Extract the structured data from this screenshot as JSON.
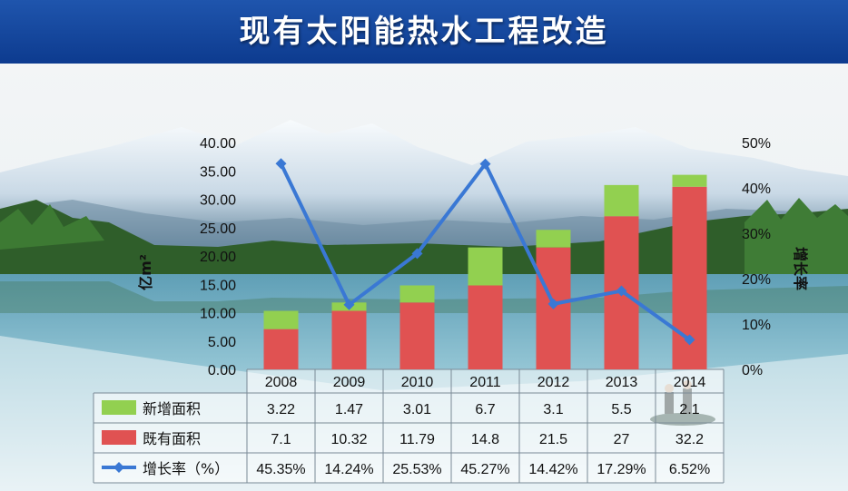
{
  "header": {
    "title": "现有太阳能热水工程改造"
  },
  "colors": {
    "banner": "#1a4ea5",
    "new_area": "#92d050",
    "existing_area": "#e05252",
    "growth_rate": "#3a78d4"
  },
  "chart_data": {
    "type": "bar",
    "stacked": true,
    "categories": [
      "2008",
      "2009",
      "2010",
      "2011",
      "2012",
      "2013",
      "2014"
    ],
    "series": [
      {
        "name": "既有面积",
        "type": "bar",
        "values": [
          7.1,
          10.32,
          11.79,
          14.8,
          21.5,
          27,
          32.2
        ]
      },
      {
        "name": "新增面积",
        "type": "bar",
        "values": [
          3.22,
          1.47,
          3.01,
          6.7,
          3.1,
          5.5,
          2.1
        ]
      },
      {
        "name": "增长率（%）",
        "type": "line",
        "axis": "right",
        "values": [
          45.35,
          14.24,
          25.53,
          45.27,
          14.42,
          17.29,
          6.52
        ],
        "labels": [
          "45.35%",
          "14.24%",
          "25.53%",
          "45.27%",
          "14.42%",
          "17.29%",
          "6.52%"
        ]
      }
    ],
    "table_rows": [
      {
        "name": "新增面积",
        "cells": [
          "3.22",
          "1.47",
          "3.01",
          "6.7",
          "3.1",
          "5.5",
          "2.1"
        ]
      },
      {
        "name": "既有面积",
        "cells": [
          "7.1",
          "10.32",
          "11.79",
          "14.8",
          "21.5",
          "27",
          "32.2"
        ]
      },
      {
        "name": "增长率（%）",
        "cells": [
          "45.35%",
          "14.24%",
          "25.53%",
          "45.27%",
          "14.42%",
          "17.29%",
          "6.52%"
        ]
      }
    ],
    "ylabel": "亿m²",
    "y2label": "增长率",
    "ylim": [
      0,
      40
    ],
    "y2lim": [
      0,
      50
    ],
    "yticks": [
      "0.00",
      "5.00",
      "10.00",
      "15.00",
      "20.00",
      "25.00",
      "30.00",
      "35.00",
      "40.00"
    ],
    "y2ticks": [
      "0%",
      "10%",
      "20%",
      "30%",
      "40%",
      "50%"
    ],
    "legend": "data-table",
    "grid": false
  }
}
